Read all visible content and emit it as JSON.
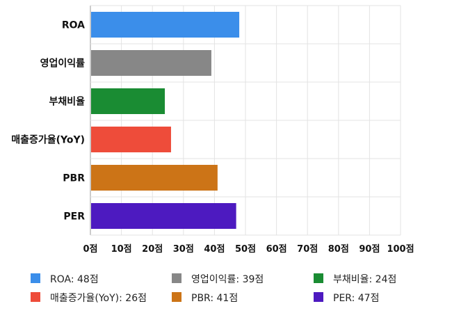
{
  "chart_data": {
    "type": "bar",
    "orientation": "horizontal",
    "categories": [
      "ROA",
      "영업이익률",
      "부채비율",
      "매출증가율(YoY)",
      "PBR",
      "PER"
    ],
    "values": [
      48,
      39,
      24,
      26,
      41,
      47
    ],
    "colors": [
      "#3b8eea",
      "#878787",
      "#1a8c33",
      "#ee4c3a",
      "#cc7417",
      "#4d1ac0"
    ],
    "xlim": [
      0,
      100
    ],
    "xticks": [
      0,
      10,
      20,
      30,
      40,
      50,
      60,
      70,
      80,
      90,
      100
    ],
    "tick_suffix": "점",
    "grid": true,
    "legend_position": "bottom",
    "legend": [
      {
        "label": "ROA: 48점",
        "color": "#3b8eea"
      },
      {
        "label": "영업이익률: 39점",
        "color": "#878787"
      },
      {
        "label": "부채비율: 24점",
        "color": "#1a8c33"
      },
      {
        "label": "매출증가율(YoY): 26점",
        "color": "#ee4c3a"
      },
      {
        "label": "PBR: 41점",
        "color": "#cc7417"
      },
      {
        "label": "PER: 47점",
        "color": "#4d1ac0"
      }
    ]
  }
}
